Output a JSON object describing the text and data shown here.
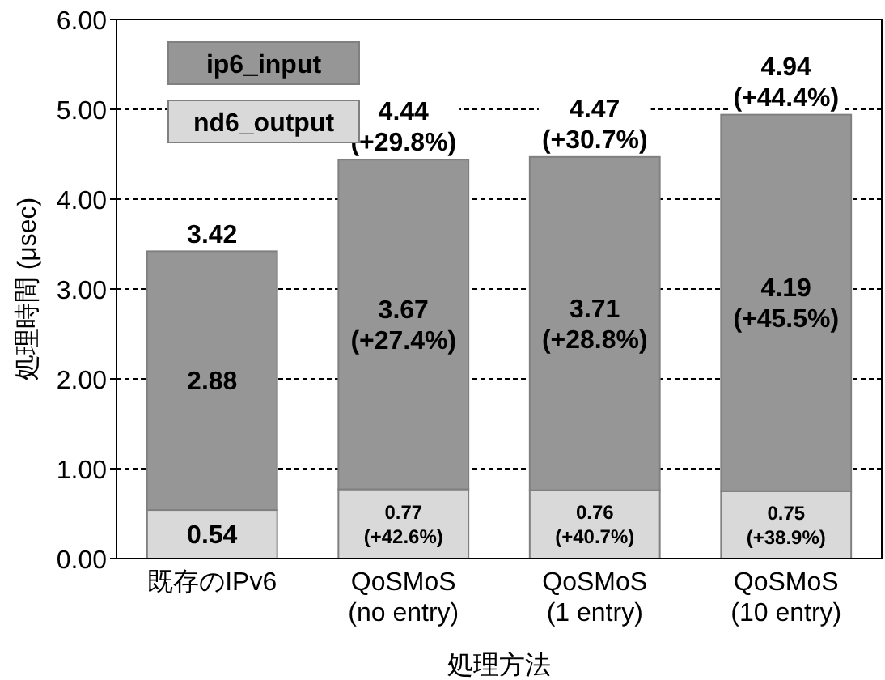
{
  "chart_data": {
    "type": "bar",
    "stacked": true,
    "xlabel": "処理方法",
    "ylabel": "処理時間 (μsec)",
    "categories": [
      "既存のIPv6",
      "QoSMoS\n(no entry)",
      "QoSMoS\n(1 entry)",
      "QoSMoS\n(10 entry)"
    ],
    "series": [
      {
        "name": "nd6_output",
        "color": "#d9d9d9",
        "values": [
          0.54,
          0.77,
          0.76,
          0.75
        ],
        "value_labels": [
          "0.54",
          "0.77\n(+42.6%)",
          "0.76\n(+40.7%)",
          "0.75\n(+38.9%)"
        ]
      },
      {
        "name": "ip6_input",
        "color": "#969696",
        "values": [
          2.88,
          3.67,
          3.71,
          4.19
        ],
        "value_labels": [
          "2.88",
          "3.67\n(+27.4%)",
          "3.71\n(+28.8%)",
          "4.19\n(+45.5%)"
        ]
      }
    ],
    "totals": [
      "3.42",
      "4.44\n(+29.8%)",
      "4.47\n(+30.7%)",
      "4.94\n(+44.4%)"
    ],
    "ylim": [
      0,
      6
    ],
    "yticks": [
      {
        "value": 0,
        "label": "0.00"
      },
      {
        "value": 1,
        "label": "1.00"
      },
      {
        "value": 2,
        "label": "2.00"
      },
      {
        "value": 3,
        "label": "3.00"
      },
      {
        "value": 4,
        "label": "4.00"
      },
      {
        "value": 5,
        "label": "5.00"
      },
      {
        "value": 6,
        "label": "6.00"
      }
    ],
    "grid": "y",
    "legend": "top left"
  }
}
